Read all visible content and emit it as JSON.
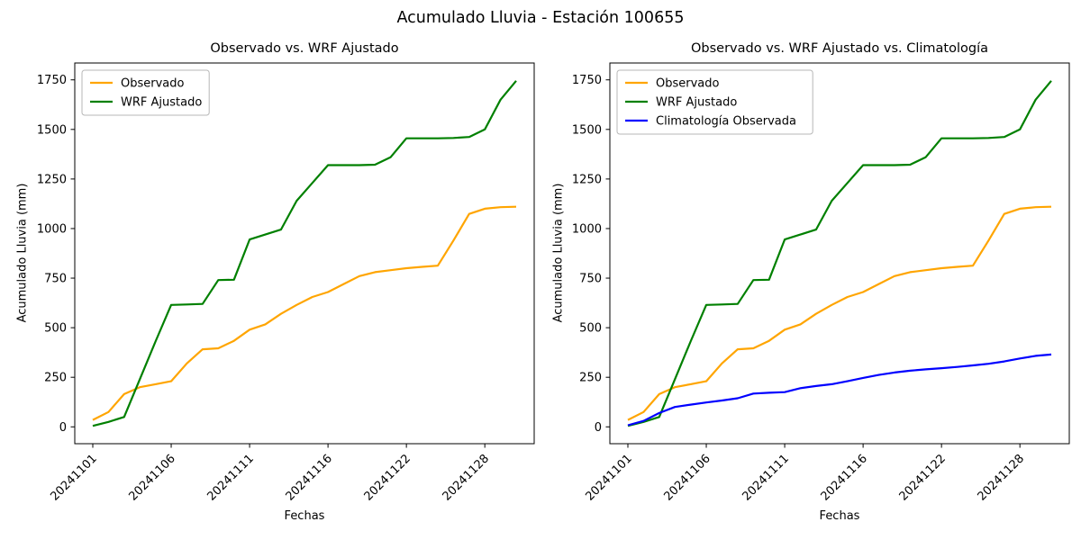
{
  "figure": {
    "title": "Acumulado Lluvia - Estación 100655",
    "background_color": "#ffffff",
    "text_color": "#000000"
  },
  "chart_data": [
    {
      "type": "line",
      "title": "Observado vs. WRF Ajustado",
      "xlabel": "Fechas",
      "ylabel": "Acumulado Lluvia (mm)",
      "grid": false,
      "legend_position": "upper left",
      "ylim": [
        -85,
        1835
      ],
      "yticks": [
        0,
        250,
        500,
        750,
        1000,
        1250,
        1500,
        1750
      ],
      "x": [
        "20241101",
        "20241102",
        "20241103",
        "20241104",
        "20241105",
        "20241106",
        "20241107",
        "20241108",
        "20241109",
        "20241110",
        "20241111",
        "20241112",
        "20241113",
        "20241114",
        "20241115",
        "20241116",
        "20241117",
        "20241118",
        "20241120",
        "20241121",
        "20241122",
        "20241123",
        "20241124",
        "20241126",
        "20241127",
        "20241128",
        "20241129",
        "20241130"
      ],
      "xtick_indices": [
        0,
        5,
        10,
        15,
        20,
        25
      ],
      "xtick_labels": [
        "20241101",
        "20241106",
        "20241111",
        "20241116",
        "20241122",
        "20241128"
      ],
      "series": [
        {
          "name": "Observado",
          "color": "#ffa500",
          "values": [
            35,
            75,
            165,
            200,
            215,
            230,
            320,
            391,
            396,
            434,
            490,
            517,
            570,
            615,
            655,
            680,
            720,
            760,
            780,
            790,
            800,
            807,
            813,
            940,
            1074,
            1100,
            1108,
            1110
          ]
        },
        {
          "name": "WRF Ajustado",
          "color": "#008000",
          "values": [
            5,
            25,
            50,
            240,
            430,
            615,
            617,
            620,
            740,
            742,
            945,
            970,
            995,
            1140,
            1230,
            1320,
            1320,
            1320,
            1322,
            1360,
            1455,
            1455,
            1455,
            1457,
            1462,
            1500,
            1650,
            1745
          ]
        }
      ]
    },
    {
      "type": "line",
      "title": "Observado vs. WRF Ajustado vs. Climatología",
      "xlabel": "Fechas",
      "ylabel": "Acumulado Lluvia (mm)",
      "grid": false,
      "legend_position": "upper left",
      "ylim": [
        -85,
        1835
      ],
      "yticks": [
        0,
        250,
        500,
        750,
        1000,
        1250,
        1500,
        1750
      ],
      "x": [
        "20241101",
        "20241102",
        "20241103",
        "20241104",
        "20241105",
        "20241106",
        "20241107",
        "20241108",
        "20241109",
        "20241110",
        "20241111",
        "20241112",
        "20241113",
        "20241114",
        "20241115",
        "20241116",
        "20241117",
        "20241118",
        "20241120",
        "20241121",
        "20241122",
        "20241123",
        "20241124",
        "20241126",
        "20241127",
        "20241128",
        "20241129",
        "20241130"
      ],
      "xtick_indices": [
        0,
        5,
        10,
        15,
        20,
        25
      ],
      "xtick_labels": [
        "20241101",
        "20241106",
        "20241111",
        "20241116",
        "20241122",
        "20241128"
      ],
      "series": [
        {
          "name": "Observado",
          "color": "#ffa500",
          "values": [
            35,
            75,
            165,
            200,
            215,
            230,
            320,
            391,
            396,
            434,
            490,
            517,
            570,
            615,
            655,
            680,
            720,
            760,
            780,
            790,
            800,
            807,
            813,
            940,
            1074,
            1100,
            1108,
            1110
          ]
        },
        {
          "name": "WRF Ajustado",
          "color": "#008000",
          "values": [
            5,
            25,
            50,
            240,
            430,
            615,
            617,
            620,
            740,
            742,
            945,
            970,
            995,
            1140,
            1230,
            1320,
            1320,
            1320,
            1322,
            1360,
            1455,
            1455,
            1455,
            1457,
            1462,
            1500,
            1650,
            1745
          ]
        },
        {
          "name": "Climatología Observada",
          "color": "#0000ff",
          "values": [
            8,
            30,
            70,
            100,
            112,
            123,
            133,
            144,
            168,
            172,
            175,
            195,
            206,
            215,
            230,
            247,
            262,
            274,
            283,
            290,
            296,
            302,
            310,
            318,
            330,
            345,
            358,
            365
          ]
        }
      ]
    }
  ]
}
